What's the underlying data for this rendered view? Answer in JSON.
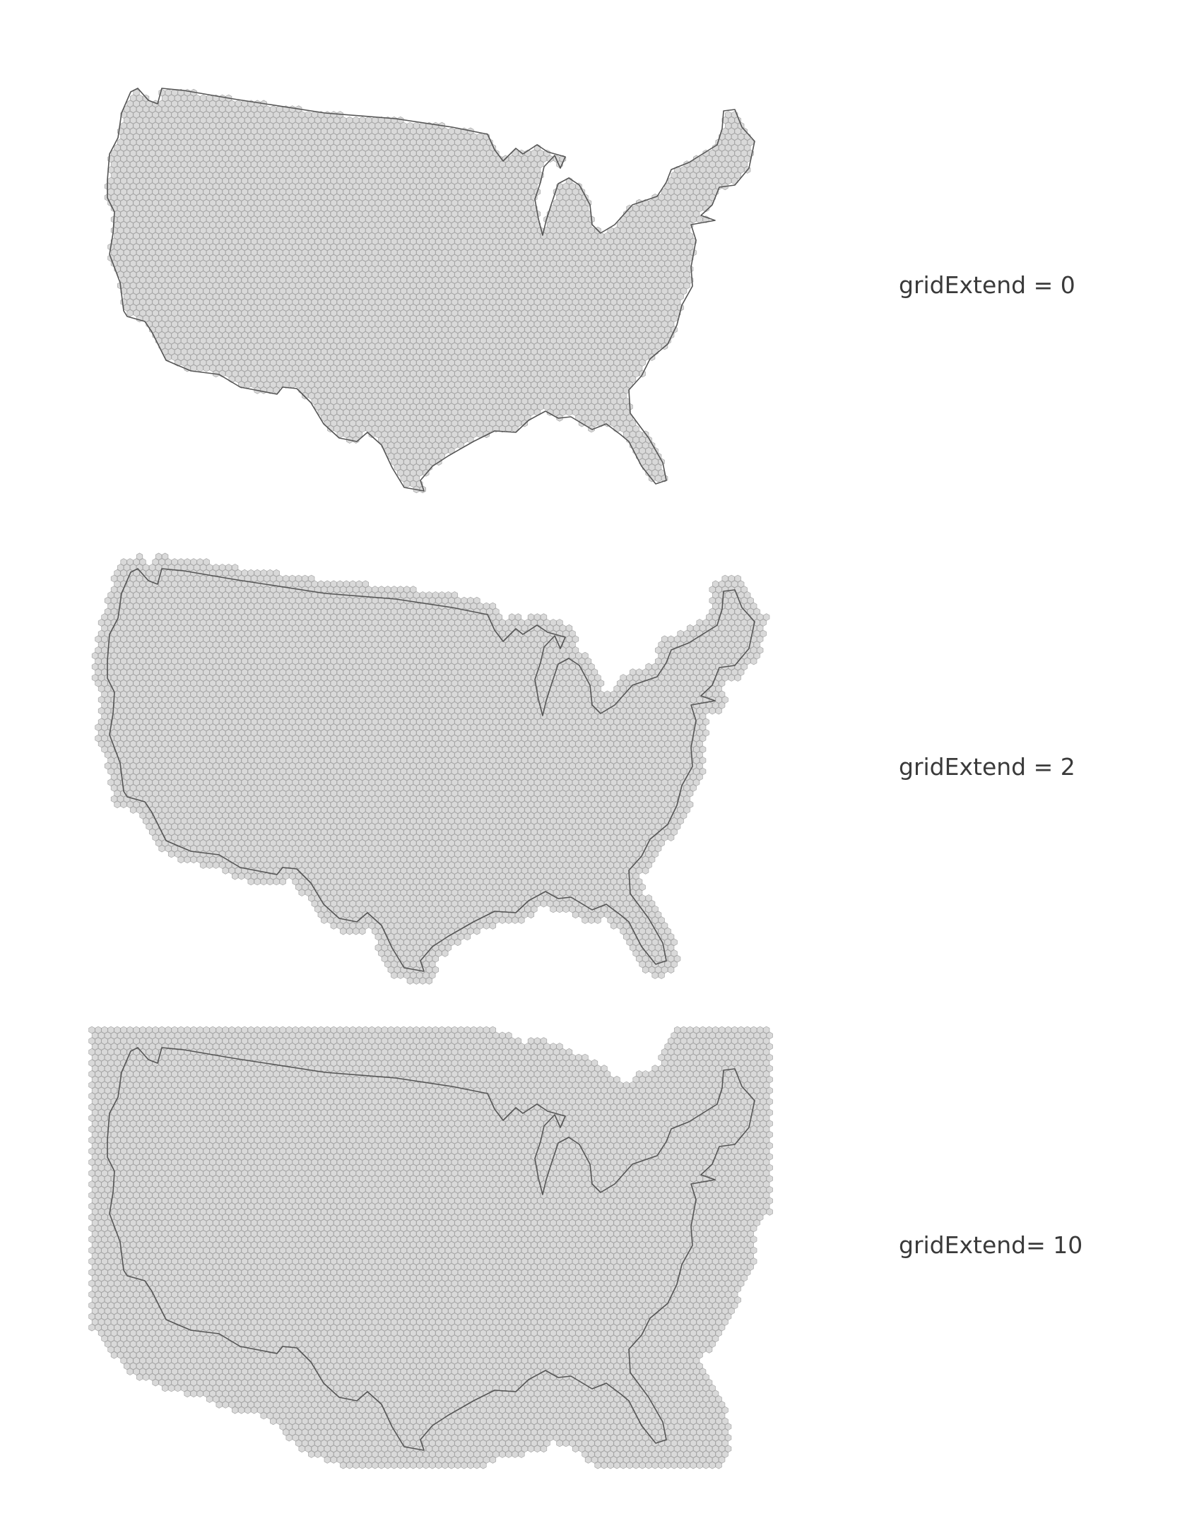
{
  "panels": [
    {
      "label": "gridExtend = 0",
      "grid_extend": 0
    },
    {
      "label": "gridExtend = 2",
      "grid_extend": 2
    },
    {
      "label": "gridExtend= 10",
      "grid_extend": 10
    }
  ],
  "colors": {
    "hex_fill": "#d9d9d9",
    "hex_stroke": "#a6a6a6",
    "outline": "#555555",
    "label_text": "#3a3a3a",
    "background": "#ffffff"
  }
}
